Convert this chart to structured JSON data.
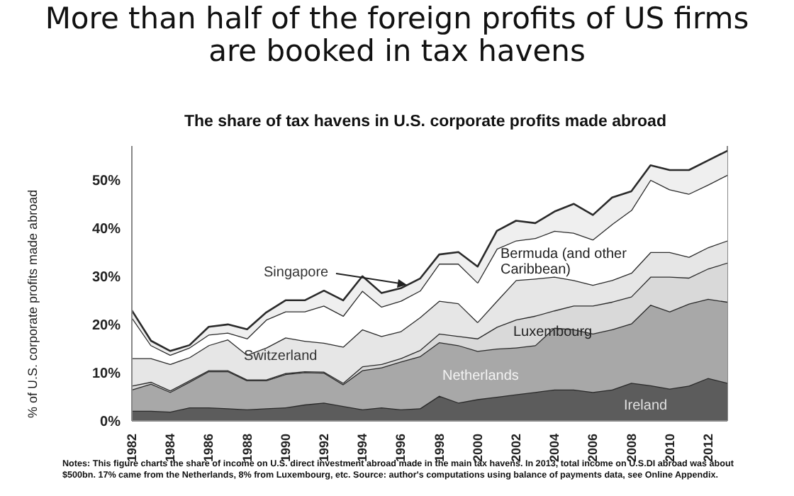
{
  "chart_data": {
    "type": "area",
    "stacked": true,
    "title": "More than half of the foreign profits of US firms are booked in tax havens",
    "subtitle": "The share of tax havens in U.S. corporate profits made abroad",
    "ylabel": "% of U.S. corporate profits made abroad",
    "annotations": [
      "Notes: This figure charts the share of income on U.S. direct investment abroad made in the main tax havens. In 2013, total income on U.S.DI abroad was about $500bn. 17% came from the Netherlands, 8% from Luxembourg, etc. Source: author's computations using balance of payments data, see Online Appendix."
    ],
    "x": [
      1982,
      1983,
      1984,
      1985,
      1986,
      1987,
      1988,
      1989,
      1990,
      1991,
      1992,
      1993,
      1994,
      1995,
      1996,
      1997,
      1998,
      1999,
      2000,
      2001,
      2002,
      2003,
      2004,
      2005,
      2006,
      2007,
      2008,
      2009,
      2010,
      2011,
      2012,
      2013
    ],
    "xlim": [
      1982,
      2013
    ],
    "xticks": [
      1982,
      1984,
      1986,
      1988,
      1990,
      1992,
      1994,
      1996,
      1998,
      2000,
      2002,
      2004,
      2006,
      2008,
      2010,
      2012
    ],
    "ylim": [
      0,
      57
    ],
    "yticks": [
      {
        "value": 0,
        "label": "0%"
      },
      {
        "value": 10,
        "label": "10%"
      },
      {
        "value": 20,
        "label": "20%"
      },
      {
        "value": 30,
        "label": "30%"
      },
      {
        "value": 40,
        "label": "40%"
      },
      {
        "value": 50,
        "label": "50%"
      }
    ],
    "grid": false,
    "series": [
      {
        "name": "Ireland",
        "color": "#5c5c5c",
        "values": [
          2.1,
          2.1,
          1.9,
          2.8,
          2.8,
          2.6,
          2.4,
          2.6,
          2.8,
          3.4,
          3.8,
          3.1,
          2.4,
          2.8,
          2.4,
          2.6,
          5.2,
          3.8,
          4.5,
          5.0,
          5.5,
          6.0,
          6.5,
          6.5,
          6.0,
          6.5,
          7.9,
          7.4,
          6.7,
          7.3,
          8.9,
          7.9
        ]
      },
      {
        "name": "Netherlands",
        "color": "#a8a8a8",
        "values": [
          4.4,
          5.6,
          4.1,
          5.3,
          7.5,
          7.7,
          6.0,
          5.8,
          6.9,
          6.7,
          6.2,
          4.5,
          8.1,
          8.3,
          9.9,
          10.8,
          11.1,
          11.9,
          10.0,
          10.0,
          9.7,
          9.7,
          12.8,
          12.5,
          12.1,
          12.5,
          12.3,
          16.7,
          16.0,
          17.0,
          16.4,
          16.8
        ]
      },
      {
        "name": "Luxembourg",
        "color": "#d9d9d9",
        "values": [
          0.8,
          0.4,
          0.3,
          0.3,
          0.2,
          0.2,
          0.2,
          0.2,
          0.2,
          0.2,
          0.2,
          0.3,
          0.8,
          0.7,
          0.7,
          1.3,
          1.8,
          1.9,
          2.6,
          4.5,
          5.8,
          6.1,
          3.6,
          4.9,
          5.8,
          5.7,
          5.6,
          5.8,
          7.2,
          5.4,
          6.3,
          8.1
        ]
      },
      {
        "name": "Switzerland",
        "color": "#e6e6e6",
        "values": [
          5.7,
          4.9,
          5.5,
          4.8,
          5.2,
          6.4,
          5.1,
          6.6,
          7.4,
          6.3,
          6.0,
          7.5,
          7.7,
          5.8,
          5.6,
          6.8,
          6.8,
          6.8,
          3.4,
          5.4,
          8.2,
          7.7,
          7.0,
          5.3,
          4.3,
          4.5,
          4.9,
          5.1,
          5.1,
          4.3,
          4.4,
          4.6
        ]
      },
      {
        "name": "Bermuda (and other Caribbean)",
        "color": "#ffffff",
        "values": [
          8.5,
          2.7,
          1.9,
          2.0,
          2.2,
          1.4,
          3.4,
          5.8,
          5.4,
          6.1,
          7.7,
          6.4,
          8.0,
          6.1,
          6.3,
          5.5,
          7.7,
          8.2,
          8.2,
          10.8,
          8.2,
          8.4,
          9.5,
          9.8,
          9.4,
          11.6,
          13.0,
          15.0,
          13.0,
          13.1,
          13.0,
          13.6
        ]
      },
      {
        "name": "Singapore",
        "color": "#efefef",
        "values": [
          1.4,
          0.9,
          0.8,
          0.5,
          1.6,
          1.7,
          1.9,
          1.5,
          2.3,
          2.3,
          3.1,
          3.2,
          3.0,
          2.8,
          2.6,
          2.5,
          1.9,
          2.4,
          3.3,
          3.7,
          4.1,
          3.1,
          4.0,
          6.0,
          5.1,
          5.5,
          3.9,
          3.0,
          4.0,
          4.9,
          5.0,
          5.0
        ]
      }
    ]
  }
}
